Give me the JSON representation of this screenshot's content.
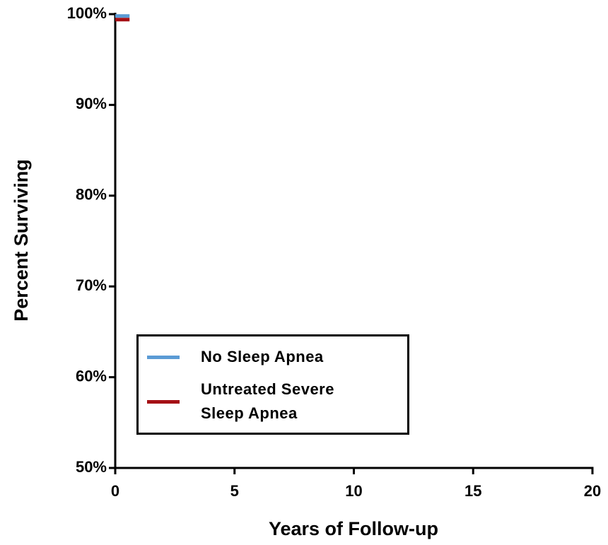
{
  "chart_data": {
    "type": "line",
    "xlabel": "Years of Follow-up",
    "ylabel": "Percent Surviving",
    "xlim": [
      0,
      20
    ],
    "xticks": [
      0,
      5,
      10,
      15,
      20
    ],
    "ylim": [
      50,
      100
    ],
    "yticks": [
      {
        "value": 50,
        "label": "50%"
      },
      {
        "value": 60,
        "label": "60%"
      },
      {
        "value": 70,
        "label": "70%"
      },
      {
        "value": 80,
        "label": "80%"
      },
      {
        "value": 90,
        "label": "90%"
      },
      {
        "value": 100,
        "label": "100%"
      }
    ],
    "legend": "lower left",
    "series": [
      {
        "name": "No Sleep Apnea",
        "color": "#5b9bd5",
        "x": [
          0,
          0.6
        ],
        "values": [
          99.8,
          99.8
        ]
      },
      {
        "name": "Untreated Severe Sleep Apnea",
        "color": "#a50f15",
        "x": [
          0,
          0.6
        ],
        "values": [
          99.4,
          99.4
        ]
      }
    ]
  }
}
